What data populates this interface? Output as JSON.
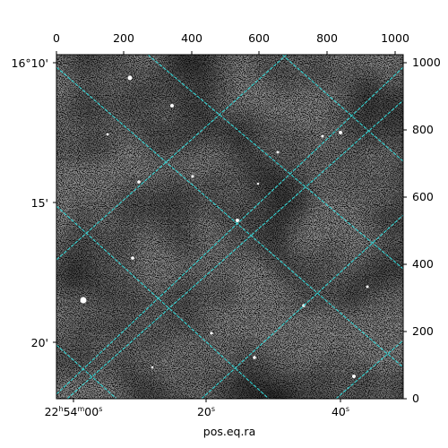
{
  "figure": {
    "xlabel": "pos.eq.ra",
    "top_axis_ticks": [
      "0",
      "200",
      "400",
      "600",
      "800",
      "1000"
    ],
    "right_axis_ticks": [
      "0",
      "200",
      "400",
      "600",
      "800",
      "1000"
    ],
    "left_axis_ticks": [
      "16°10'",
      "15'",
      "20'"
    ],
    "bottom_axis_ticks": {
      "first": {
        "h": "22",
        "hs": "h",
        "m": "54",
        "ms": "m",
        "s": "00",
        "ss": "s"
      },
      "second": {
        "s": "20",
        "ss": "s"
      },
      "third": {
        "s": "40",
        "ss": "s"
      }
    },
    "grid_color": "#35d4d4",
    "image_palette": "grayscale"
  }
}
